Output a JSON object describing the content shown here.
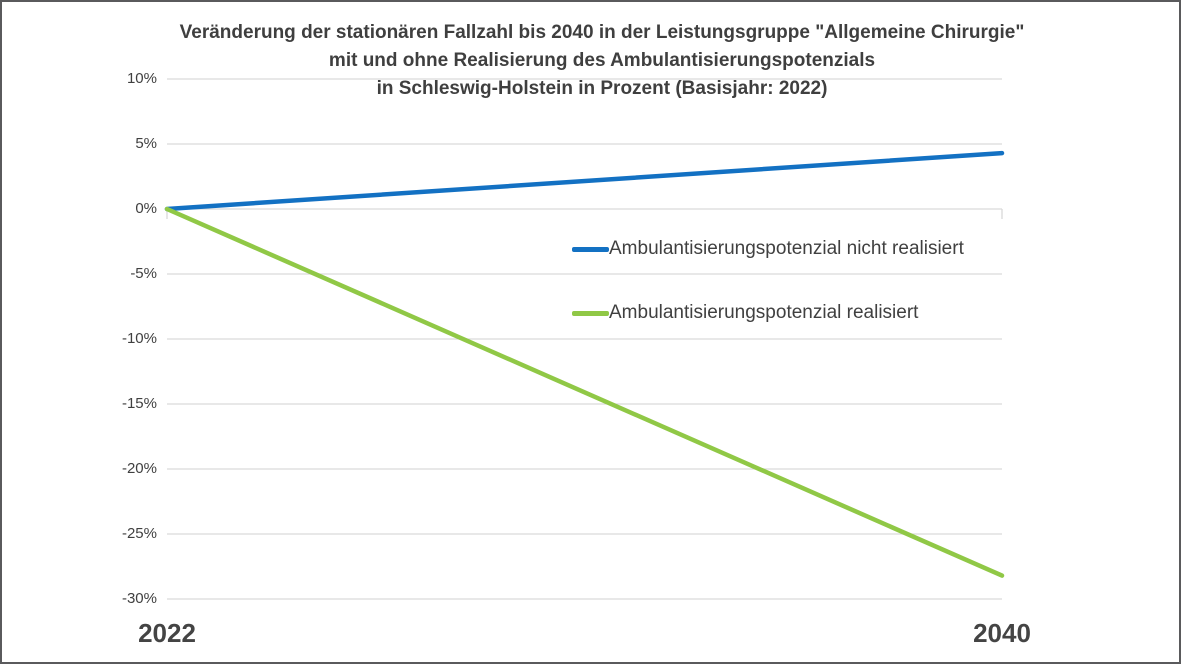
{
  "chart_data": {
    "type": "line",
    "title": "Veränderung der stationären Fallzahl bis 2040 in der Leistungsgruppe \"Allgemeine Chirurgie\" mit und ohne Realisierung des Ambulantisierungspotenzials in Schleswig-Holstein in Prozent (Basisjahr: 2022)",
    "title_lines": [
      "Veränderung der stationären Fallzahl bis 2040 in der Leistungsgruppe \"Allgemeine Chirurgie\"",
      "mit und ohne Realisierung des Ambulantisierungspotenzials",
      "in Schleswig-Holstein in Prozent (Basisjahr: 2022)"
    ],
    "x": [
      2022,
      2040
    ],
    "x_tick_labels": [
      "2022",
      "2040"
    ],
    "y_ticks": [
      10,
      5,
      0,
      -5,
      -10,
      -15,
      -20,
      -25,
      -30
    ],
    "y_tick_labels": [
      "10%",
      "5%",
      "0%",
      "-5%",
      "-10%",
      "-15%",
      "-20%",
      "-25%",
      "-30%"
    ],
    "ylim": [
      -30,
      10
    ],
    "xlabel": "",
    "ylabel": "",
    "unit": "percent",
    "grid": true,
    "legend_position": "inside-right-upper",
    "series": [
      {
        "name": "Ambulantisierungspotenzial nicht realisiert",
        "values": [
          0,
          4.3
        ],
        "color": "#1371c3"
      },
      {
        "name": "Ambulantisierungspotenzial realisiert",
        "values": [
          0,
          -28.2
        ],
        "color": "#90c846"
      }
    ]
  },
  "colors": {
    "background": "#ffffff",
    "frame_border": "#5a5a5c",
    "gridline": "#d9d9d9",
    "title_text": "#3f3f3f",
    "axis_text": "#404040"
  }
}
